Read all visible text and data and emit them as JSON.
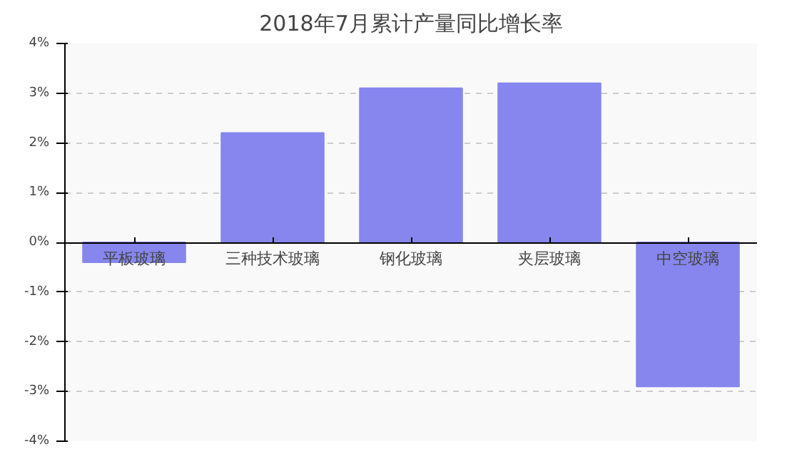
{
  "chart_data": {
    "type": "bar",
    "title": "2018年7月累计产量同比增长率",
    "categories": [
      "平板玻璃",
      "三种技术玻璃",
      "钢化玻璃",
      "夹层玻璃",
      "中空玻璃"
    ],
    "values": [
      -0.4,
      2.2,
      3.1,
      3.2,
      -2.9
    ],
    "color": "#8686ee",
    "ylim": [
      -4,
      4
    ],
    "yticks": [
      {
        "value": -4,
        "label": "-4%"
      },
      {
        "value": -3,
        "label": "-3%"
      },
      {
        "value": -2,
        "label": "-2%"
      },
      {
        "value": -1,
        "label": "-1%"
      },
      {
        "value": 0,
        "label": "0%"
      },
      {
        "value": 1,
        "label": "1%"
      },
      {
        "value": 2,
        "label": "2%"
      },
      {
        "value": 3,
        "label": "3%"
      },
      {
        "value": 4,
        "label": "4%"
      }
    ],
    "grid": "y"
  }
}
